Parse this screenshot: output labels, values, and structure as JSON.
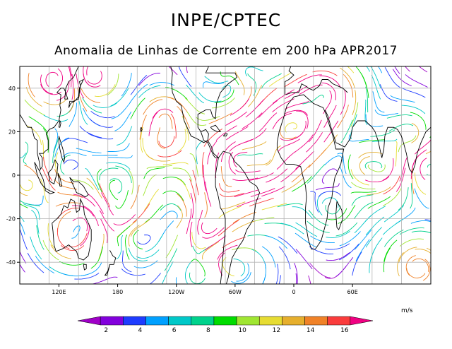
{
  "header": {
    "title": "INPE/CPTEC",
    "subtitle": "Anomalia de Linhas de Corrente em 200 hPa APR2017"
  },
  "map": {
    "lon_min": 80,
    "lon_max": 500,
    "lat_min": -50,
    "lat_max": 50,
    "lat_ticks": [
      {
        "value": 40,
        "label": "40"
      },
      {
        "value": 20,
        "label": "20"
      },
      {
        "value": 0,
        "label": "0"
      },
      {
        "value": -20,
        "label": "-20"
      },
      {
        "value": -40,
        "label": "-40"
      }
    ],
    "lon_ticks": [
      {
        "value": 120,
        "label": "120E"
      },
      {
        "value": 180,
        "label": "180"
      },
      {
        "value": 240,
        "label": "120W"
      },
      {
        "value": 300,
        "label": "60W"
      },
      {
        "value": 360,
        "label": "0"
      },
      {
        "value": 420,
        "label": "60E"
      }
    ],
    "grid_lons": [
      110,
      140,
      170,
      200,
      230,
      260,
      290,
      320,
      350,
      380,
      410,
      440,
      470
    ],
    "grid_lats": [
      40,
      20,
      0,
      -20,
      -40
    ]
  },
  "colorbar": {
    "units": "m/s",
    "labels": [
      "2",
      "4",
      "6",
      "8",
      "10",
      "12",
      "14",
      "16"
    ],
    "colors": [
      "#a000c8",
      "#8200dc",
      "#1e3cff",
      "#00a0ff",
      "#00c8c8",
      "#00d28c",
      "#00dc00",
      "#a0e632",
      "#e6dc32",
      "#e6af2d",
      "#f08228",
      "#fa3c3c",
      "#f00082"
    ]
  }
}
